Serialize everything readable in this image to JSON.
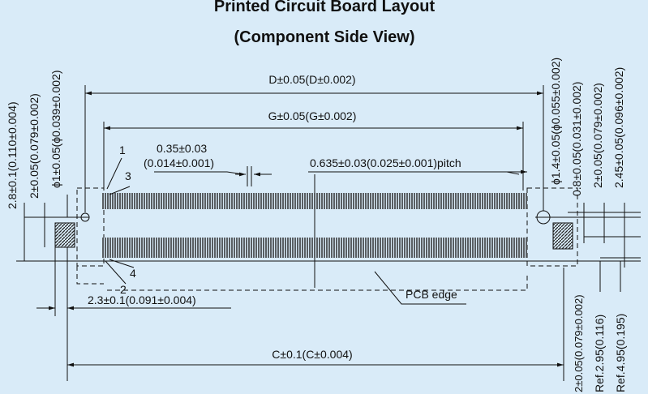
{
  "title": {
    "line1": "Printed Circuit Board Layout",
    "line2": "(Component Side View)"
  },
  "dimensions": {
    "d": "D±0.05(D±0.002)",
    "g": "G±0.05(G±0.002)",
    "pad_width_mm": "0.35±0.03",
    "pad_width_in": "(0.014±0.001)",
    "pitch": "0.635±0.03(0.025±0.001)pitch",
    "offset": "2.3±0.1(0.091±0.004)",
    "c": "C±0.1(C±0.004)",
    "left_vertical": [
      "2.8±0.1(0.110±0.004)",
      "2±0.05(0.079±0.002)",
      "ϕ1±0.05(ϕ0.039±0.002)"
    ],
    "right_vertical": [
      "ϕ1.4±0.05(ϕ0.055±0.002)",
      "0.8±0.05(0.031±0.002)",
      "2±0.05(0.079±0.002)",
      "2.45±0.05(0.096±0.002)"
    ],
    "bottom_right_vertical": [
      "2±0.05(0.079±0.002)",
      "Ref.2.95(0.116)",
      "Ref.4.95(0.195)"
    ]
  },
  "pin_labels": [
    "1",
    "3",
    "4",
    "2"
  ],
  "pcb_edge": "PCB edge"
}
